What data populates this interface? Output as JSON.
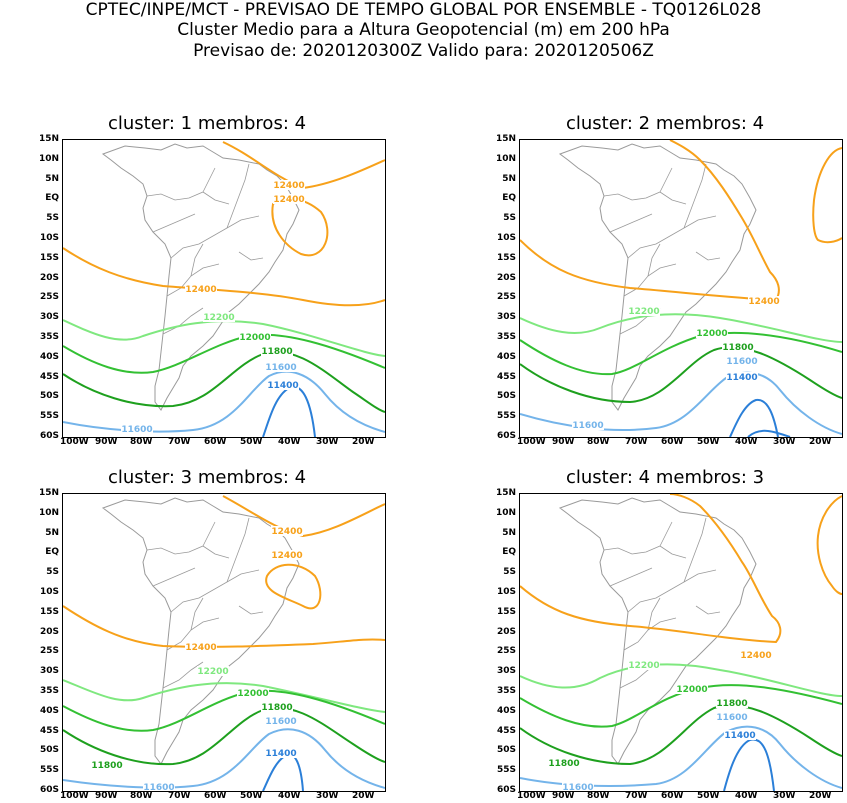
{
  "header": {
    "line1": "CPTEC/INPE/MCT - PREVISAO DE TEMPO GLOBAL POR ENSEMBLE - TQ0126L028",
    "line2": "Cluster Medio para a Altura Geopotencial (m) em 200 hPa",
    "line3": "Previsao de: 2020120300Z    Valido para: 2020120506Z"
  },
  "axes": {
    "lat_labels": [
      "15N",
      "10N",
      "5N",
      "EQ",
      "5S",
      "10S",
      "15S",
      "20S",
      "25S",
      "30S",
      "35S",
      "40S",
      "45S",
      "50S",
      "55S",
      "60S"
    ],
    "lon_labels": [
      "100W",
      "90W",
      "80W",
      "70W",
      "60W",
      "50W",
      "40W",
      "30W",
      "20W"
    ]
  },
  "colors": {
    "c12400": "#f7a11a",
    "c12200": "#7fe87f",
    "c12000": "#33c033",
    "c11800": "#1ea01e",
    "c11600": "#74b4ea",
    "c11400": "#2b7fd8",
    "coast": "#9a9a9a"
  },
  "panels": [
    {
      "title": "cluster: 1   membros: 4",
      "labels": {
        "a": "12400",
        "b": "12400",
        "c": "12400",
        "d": "12200",
        "e": "12000",
        "f": "11800",
        "g": "11600",
        "h": "11400",
        "i": "11600"
      }
    },
    {
      "title": "cluster: 2   membros: 4",
      "labels": {
        "a": "12400",
        "d": "12200",
        "e": "12000",
        "f": "11800",
        "g": "11600",
        "h": "11400",
        "i": "11600"
      }
    },
    {
      "title": "cluster: 3   membros: 4",
      "labels": {
        "a": "12400",
        "b": "12400",
        "c": "12400",
        "d": "12200",
        "e": "12000",
        "f": "11800",
        "g": "11600",
        "h": "11400",
        "i": "11600",
        "j": "11800"
      }
    },
    {
      "title": "cluster: 4   membros: 3",
      "labels": {
        "a": "12400",
        "d": "12200",
        "e": "12000",
        "f": "11800",
        "g": "11600",
        "h": "11400",
        "i": "11600",
        "j": "11800"
      }
    }
  ]
}
